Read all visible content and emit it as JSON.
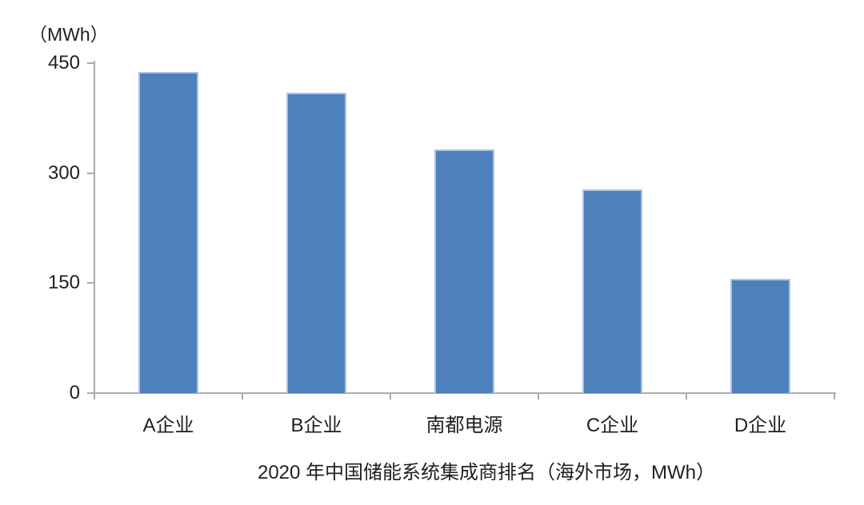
{
  "chart_data": {
    "type": "bar",
    "title": "2020 年中国储能系统集成商排名（海外市场，MWh）",
    "unit_label": "（MWh）",
    "xlabel": "",
    "ylabel": "（MWh）",
    "categories": [
      "A企业",
      "B企业",
      "南都电源",
      "C企业",
      "D企业"
    ],
    "values": [
      438,
      410,
      332,
      278,
      156
    ],
    "ylim": [
      0,
      450
    ],
    "yticks": [
      0,
      150,
      300,
      450
    ],
    "grid": false,
    "legend_position": "none",
    "colors": {
      "bar_fill": "#4e80bc",
      "bar_border": "#aec3e0",
      "axis": "#ababab",
      "text": "#1f1f1f",
      "background": "#ffffff"
    }
  }
}
